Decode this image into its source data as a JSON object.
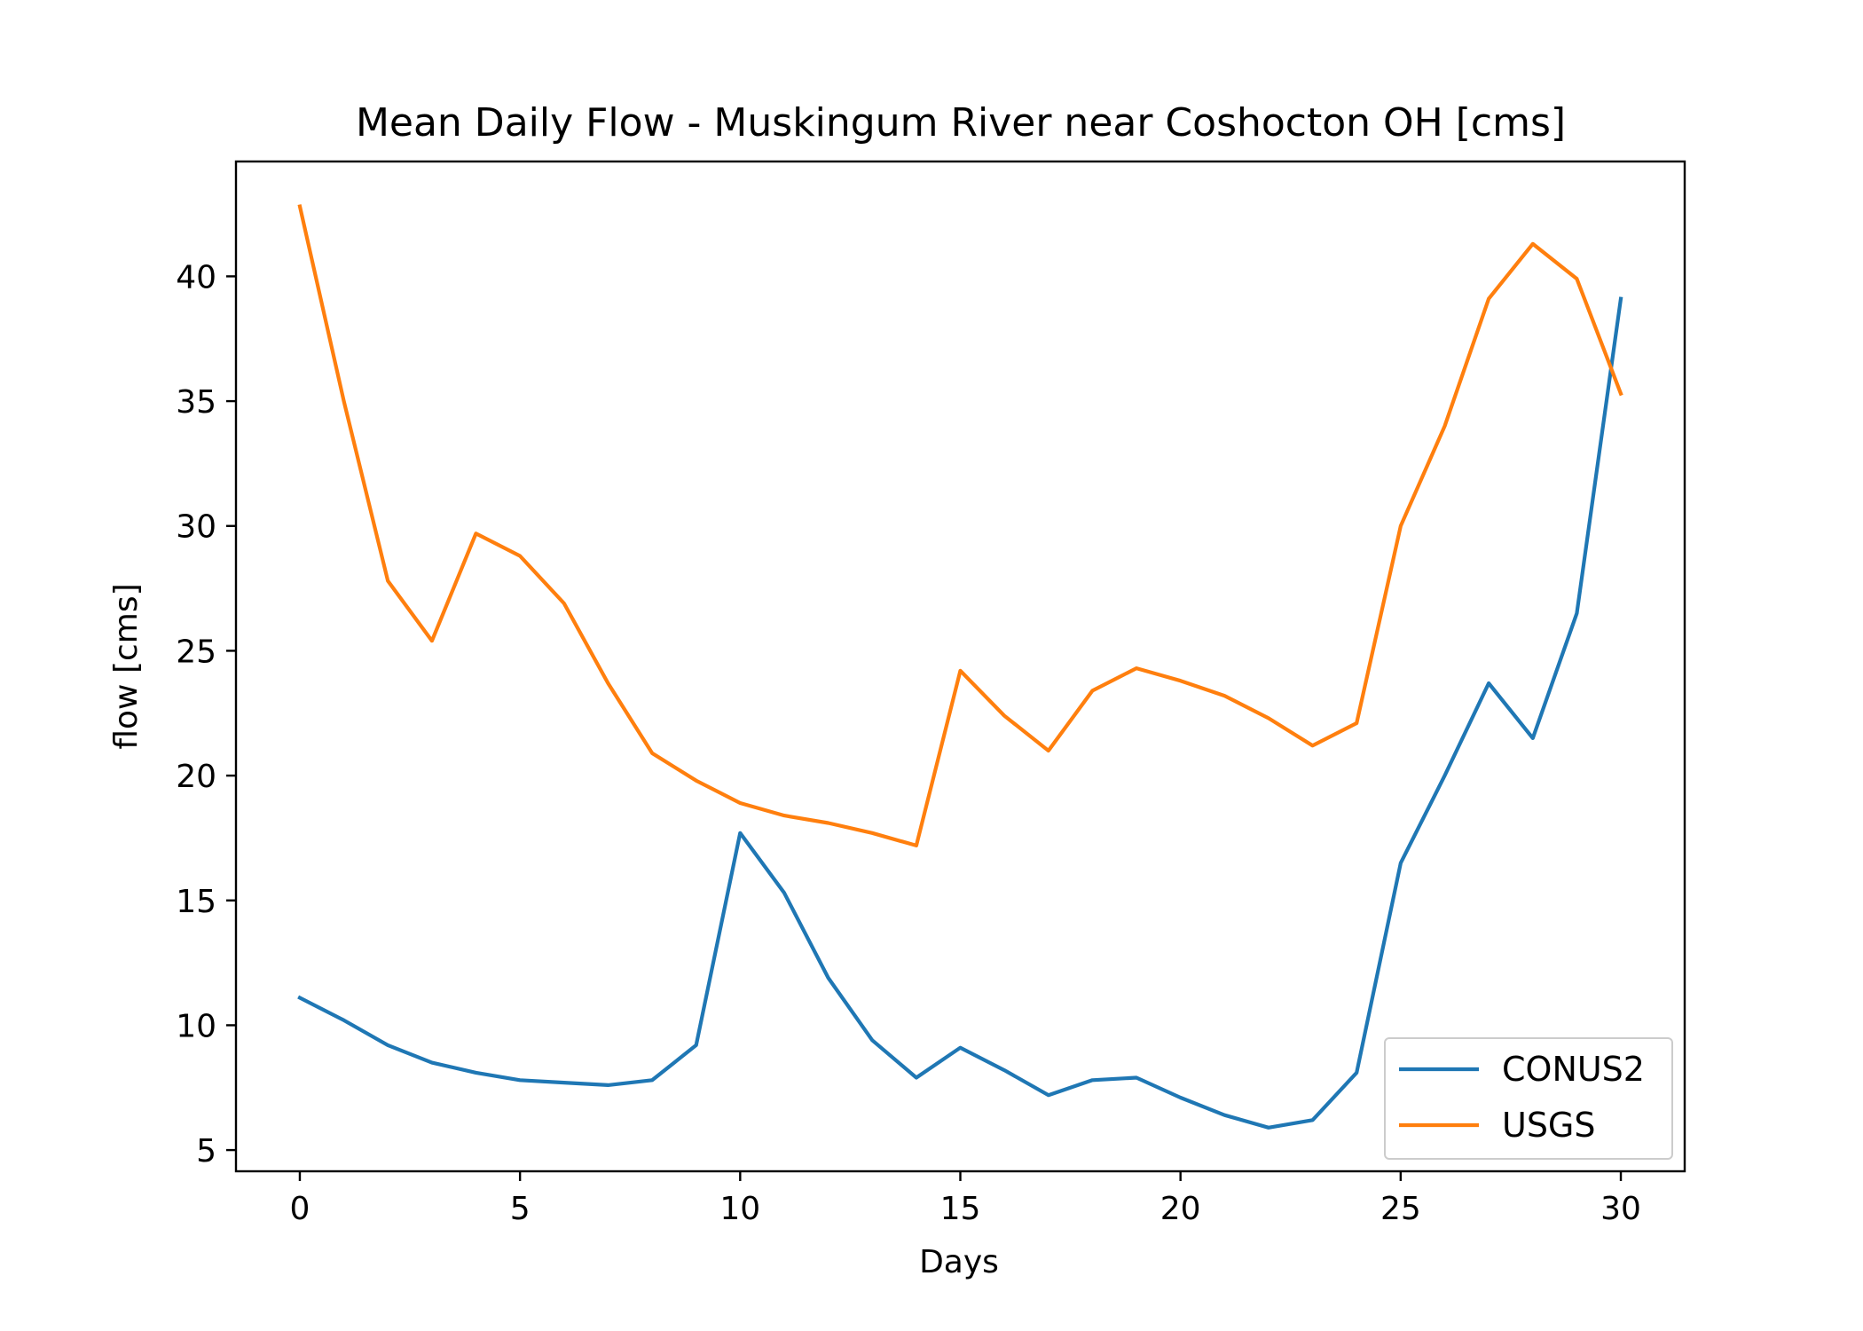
{
  "chart_data": {
    "type": "line",
    "title": "Mean Daily Flow - Muskingum River near Coshocton OH [cms]",
    "xlabel": "Days",
    "ylabel": "flow [cms]",
    "xlim": [
      -1.45,
      31.45
    ],
    "ylim": [
      4.15,
      44.6
    ],
    "xticks": [
      0,
      5,
      10,
      15,
      20,
      25,
      30
    ],
    "yticks": [
      5,
      10,
      15,
      20,
      25,
      30,
      35,
      40
    ],
    "grid": false,
    "legend_position": "lower-right",
    "x": [
      0,
      1,
      2,
      3,
      4,
      5,
      6,
      7,
      8,
      9,
      10,
      11,
      12,
      13,
      14,
      15,
      16,
      17,
      18,
      19,
      20,
      21,
      22,
      23,
      24,
      25,
      26,
      27,
      28,
      29,
      30
    ],
    "series": [
      {
        "name": "CONUS2",
        "color": "#1f77b4",
        "values": [
          11.1,
          10.2,
          9.2,
          8.5,
          8.1,
          7.8,
          7.7,
          7.6,
          7.8,
          9.2,
          17.7,
          15.3,
          11.9,
          9.4,
          7.9,
          9.1,
          8.2,
          7.2,
          7.8,
          7.9,
          7.1,
          6.4,
          5.9,
          6.2,
          8.1,
          16.5,
          20.0,
          23.7,
          21.5,
          26.5,
          39.1
        ]
      },
      {
        "name": "USGS",
        "color": "#ff7f0e",
        "values": [
          42.8,
          35.0,
          27.8,
          25.4,
          29.7,
          28.8,
          26.9,
          23.7,
          20.9,
          19.8,
          18.9,
          18.4,
          18.1,
          17.7,
          17.2,
          24.2,
          22.4,
          21.0,
          23.4,
          24.3,
          23.8,
          23.2,
          22.3,
          21.2,
          22.1,
          30.0,
          34.0,
          39.1,
          41.3,
          39.9,
          35.3
        ]
      }
    ]
  }
}
